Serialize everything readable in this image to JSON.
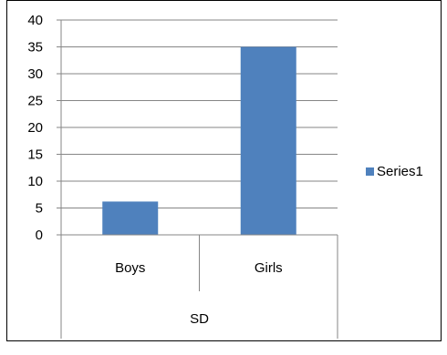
{
  "chart_data": {
    "type": "bar",
    "categories": [
      "Boys",
      "Girls"
    ],
    "series": [
      {
        "name": "Series1",
        "values": [
          6.2,
          35
        ],
        "color": "#4F81BD"
      }
    ],
    "group_label": "SD",
    "ylim": [
      0,
      40
    ],
    "yticks": [
      "0",
      "5",
      "10",
      "15",
      "20",
      "25",
      "30",
      "35",
      "40"
    ],
    "grid": true,
    "legend_position": "right"
  }
}
